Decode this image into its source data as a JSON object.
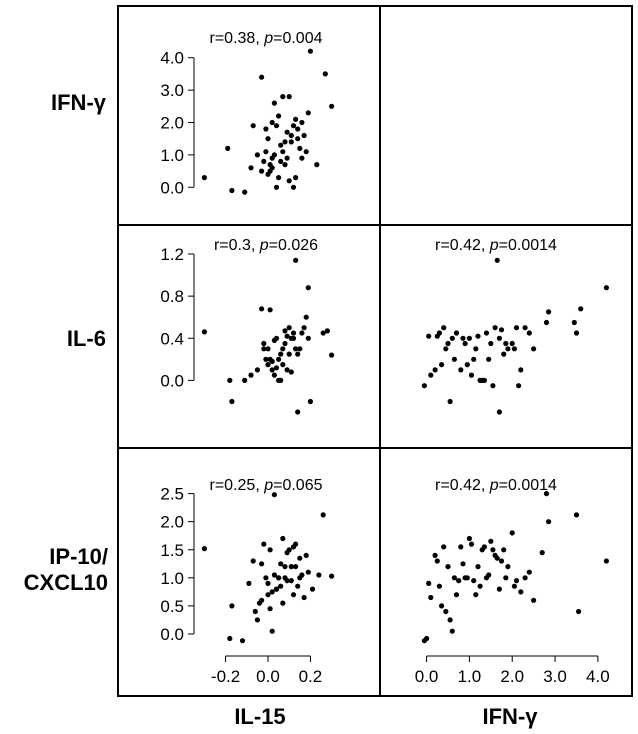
{
  "figure": {
    "row_labels": [
      "IFN-γ",
      "IL-6",
      "IP-10/\nCXCL10"
    ],
    "col_labels": [
      "IL-15",
      "IFN-γ"
    ]
  },
  "chart_data": [
    {
      "type": "scatter",
      "panel": "IL-15 vs IFN-γ",
      "annotation": {
        "r": "r=0.38",
        "p": "0.004"
      },
      "xlim": [
        -0.33,
        0.33
      ],
      "ylim": [
        -0.3,
        4.3
      ],
      "yticks": [
        0.0,
        1.0,
        2.0,
        3.0,
        4.0
      ],
      "ytick_labels": [
        "0.0",
        "1.0",
        "2.0",
        "3.0",
        "4.0"
      ],
      "x": [
        -0.3,
        -0.17,
        -0.11,
        -0.19,
        -0.08,
        -0.07,
        -0.05,
        -0.03,
        -0.02,
        -0.01,
        0.0,
        0.01,
        0.02,
        0.03,
        0.04,
        0.05,
        0.06,
        0.07,
        0.08,
        0.09,
        0.1,
        0.11,
        0.12,
        0.13,
        0.14,
        0.15,
        0.16,
        0.17,
        0.18,
        0.19,
        0.2,
        -0.01,
        0.0,
        0.02,
        0.03,
        0.05,
        0.06,
        0.08,
        0.1,
        0.12,
        0.14,
        -0.03,
        0.02,
        0.07,
        0.09,
        0.11,
        0.04,
        0.01,
        0.27,
        0.3,
        0.23,
        0.16,
        0.13
      ],
      "y": [
        0.3,
        -0.1,
        -0.15,
        1.2,
        0.6,
        1.9,
        1.0,
        3.4,
        0.8,
        1.1,
        1.5,
        0.5,
        0.9,
        2.6,
        0.0,
        2.2,
        1.3,
        2.8,
        0.7,
        1.7,
        2.8,
        1.4,
        1.9,
        2.1,
        1.8,
        1.2,
        0.9,
        1.6,
        1.1,
        2.3,
        4.2,
        1.8,
        0.4,
        0.6,
        1.0,
        0.3,
        0.8,
        1.4,
        0.2,
        0.0,
        1.5,
        0.5,
        2.0,
        1.1,
        0.9,
        1.6,
        1.9,
        0.7,
        3.5,
        2.5,
        0.7,
        2.0,
        0.3
      ]
    },
    {
      "type": "scatter",
      "panel": "IL-15 vs IL-6",
      "annotation": {
        "r": "r=0.3",
        "p": "0.026"
      },
      "xlim": [
        -0.33,
        0.33
      ],
      "ylim": [
        -0.3,
        1.2
      ],
      "yticks": [
        0.0,
        0.4,
        0.8,
        1.2
      ],
      "ytick_labels": [
        "0.0",
        "0.4",
        "0.8",
        "1.2"
      ],
      "x": [
        -0.3,
        -0.17,
        -0.11,
        -0.18,
        -0.08,
        -0.05,
        -0.03,
        -0.02,
        -0.01,
        0.0,
        0.01,
        0.02,
        0.03,
        0.04,
        0.05,
        0.06,
        0.07,
        0.08,
        0.09,
        0.1,
        0.11,
        0.12,
        0.13,
        0.14,
        0.15,
        0.16,
        0.17,
        0.18,
        0.19,
        -0.02,
        0.0,
        0.02,
        0.03,
        0.05,
        0.06,
        0.08,
        0.1,
        0.12,
        0.14,
        0.04,
        0.01,
        0.26,
        0.28,
        0.3,
        0.2,
        0.19,
        0.13,
        0.11,
        0.09,
        0.07
      ],
      "y": [
        0.46,
        -0.2,
        0.0,
        0.0,
        0.05,
        0.1,
        0.68,
        0.35,
        0.2,
        0.3,
        0.67,
        0.18,
        0.05,
        0.4,
        0.0,
        0.25,
        0.3,
        0.47,
        0.1,
        0.5,
        0.4,
        0.45,
        1.14,
        0.25,
        0.3,
        0.45,
        0.5,
        0.6,
        0.4,
        0.3,
        0.15,
        0.1,
        0.38,
        0.2,
        0.0,
        0.35,
        0.25,
        0.4,
        -0.3,
        0.12,
        0.2,
        0.45,
        0.47,
        0.24,
        -0.2,
        0.88,
        0.3,
        0.08,
        0.42,
        0.15
      ]
    },
    {
      "type": "scatter",
      "panel": "IFN-γ vs IL-6",
      "annotation": {
        "r": "r=0.42",
        "p": "0.0014"
      },
      "xlim": [
        -0.2,
        4.4
      ],
      "ylim": [
        -0.3,
        1.2
      ],
      "x": [
        -0.05,
        0.05,
        0.1,
        0.2,
        0.3,
        0.4,
        0.45,
        0.55,
        0.6,
        0.7,
        0.8,
        0.9,
        1.0,
        1.1,
        1.2,
        1.3,
        1.4,
        1.5,
        1.6,
        1.7,
        1.8,
        1.9,
        2.0,
        2.1,
        2.2,
        2.3,
        2.4,
        2.8,
        2.85,
        3.5,
        3.6,
        4.2,
        0.35,
        0.5,
        0.65,
        0.85,
        1.05,
        1.25,
        1.45,
        1.65,
        1.85,
        2.05,
        1.55,
        1.75,
        0.95,
        0.25,
        1.15,
        1.35,
        2.15,
        2.5,
        3.45,
        1.7
      ],
      "y": [
        -0.05,
        0.42,
        0.05,
        0.1,
        0.45,
        0.5,
        0.3,
        -0.2,
        0.4,
        0.45,
        0.1,
        0.35,
        0.4,
        0.2,
        0.42,
        0.0,
        0.45,
        0.35,
        0.5,
        0.4,
        0.25,
        0.3,
        0.35,
        0.5,
        0.1,
        0.5,
        0.45,
        0.55,
        0.65,
        0.45,
        0.68,
        0.88,
        0.15,
        0.35,
        0.2,
        0.4,
        0.05,
        0.0,
        0.2,
        1.14,
        0.35,
        0.3,
        -0.05,
        0.48,
        0.15,
        0.42,
        0.3,
        0.0,
        -0.05,
        0.3,
        0.55,
        -0.3
      ]
    },
    {
      "type": "scatter",
      "panel": "IL-15 vs IP-10/CXCL10",
      "annotation": {
        "r": "r=0.25",
        "p": "0.065"
      },
      "xlim": [
        -0.33,
        0.33
      ],
      "ylim": [
        -0.25,
        2.6
      ],
      "yticks": [
        0.0,
        0.5,
        1.0,
        1.5,
        2.0,
        2.5
      ],
      "ytick_labels": [
        "0.0",
        "0.5",
        "1.0",
        "1.5",
        "2.0",
        "2.5"
      ],
      "xticks": [
        -0.2,
        0.0,
        0.2
      ],
      "xtick_labels": [
        "-0.2",
        "0.0",
        "0.2"
      ],
      "x": [
        -0.3,
        -0.18,
        -0.12,
        -0.17,
        -0.09,
        -0.07,
        -0.05,
        -0.04,
        -0.03,
        -0.02,
        -0.01,
        0.0,
        0.01,
        0.02,
        0.03,
        0.04,
        0.05,
        0.06,
        0.07,
        0.08,
        0.09,
        0.1,
        0.11,
        0.12,
        0.13,
        0.14,
        0.15,
        0.16,
        0.17,
        0.18,
        0.19,
        -0.03,
        0.01,
        0.03,
        0.05,
        0.07,
        0.09,
        0.11,
        0.13,
        0.15,
        0.02,
        0.04,
        0.24,
        0.3,
        0.26,
        0.21,
        0.12,
        0.08,
        0.06,
        -0.06,
        0.0
      ],
      "y": [
        1.52,
        -0.08,
        -0.12,
        0.5,
        0.9,
        1.3,
        0.25,
        0.55,
        0.6,
        1.6,
        1.0,
        0.9,
        1.5,
        0.75,
        2.48,
        0.8,
        1.0,
        1.25,
        1.7,
        1.0,
        0.95,
        1.5,
        1.2,
        0.7,
        1.6,
        0.85,
        1.35,
        1.05,
        0.65,
        1.4,
        1.1,
        1.25,
        0.45,
        1.05,
        1.0,
        0.55,
        1.45,
        0.95,
        1.2,
        1.0,
        0.05,
        0.8,
        1.05,
        1.03,
        2.12,
        0.8,
        1.55,
        1.2,
        0.85,
        0.4,
        0.7
      ]
    },
    {
      "type": "scatter",
      "panel": "IFN-γ vs IP-10/CXCL10",
      "annotation": {
        "r": "r=0.42",
        "p": "0.0014"
      },
      "xlim": [
        -0.2,
        4.4
      ],
      "ylim": [
        -0.25,
        2.6
      ],
      "xticks": [
        0.0,
        1.0,
        2.0,
        3.0,
        4.0
      ],
      "xtick_labels": [
        "0.0",
        "1.0",
        "2.0",
        "3.0",
        "4.0"
      ],
      "x": [
        -0.05,
        0.0,
        0.05,
        0.1,
        0.2,
        0.3,
        0.4,
        0.45,
        0.5,
        0.55,
        0.6,
        0.7,
        0.8,
        0.9,
        1.0,
        1.1,
        1.2,
        1.3,
        1.4,
        1.5,
        1.6,
        1.7,
        1.8,
        1.9,
        2.0,
        2.1,
        2.2,
        2.3,
        2.4,
        2.7,
        2.85,
        2.8,
        3.5,
        3.55,
        4.2,
        0.35,
        0.65,
        0.85,
        1.05,
        1.25,
        1.45,
        1.65,
        1.85,
        2.05,
        0.95,
        1.15,
        1.35,
        1.75,
        0.75,
        0.25,
        1.55,
        2.5
      ],
      "y": [
        -0.12,
        -0.08,
        0.9,
        0.65,
        1.4,
        0.85,
        1.55,
        0.4,
        1.2,
        0.25,
        0.05,
        0.7,
        1.55,
        1.0,
        1.7,
        0.95,
        1.2,
        1.5,
        1.0,
        1.65,
        1.4,
        0.8,
        1.5,
        1.2,
        1.8,
        0.95,
        0.75,
        1.0,
        1.1,
        1.45,
        2.0,
        2.5,
        2.12,
        0.4,
        1.3,
        0.5,
        1.0,
        1.25,
        1.6,
        0.85,
        1.05,
        1.35,
        1.0,
        0.85,
        1.0,
        0.7,
        1.55,
        1.3,
        0.95,
        1.3,
        1.5,
        0.6
      ]
    }
  ]
}
